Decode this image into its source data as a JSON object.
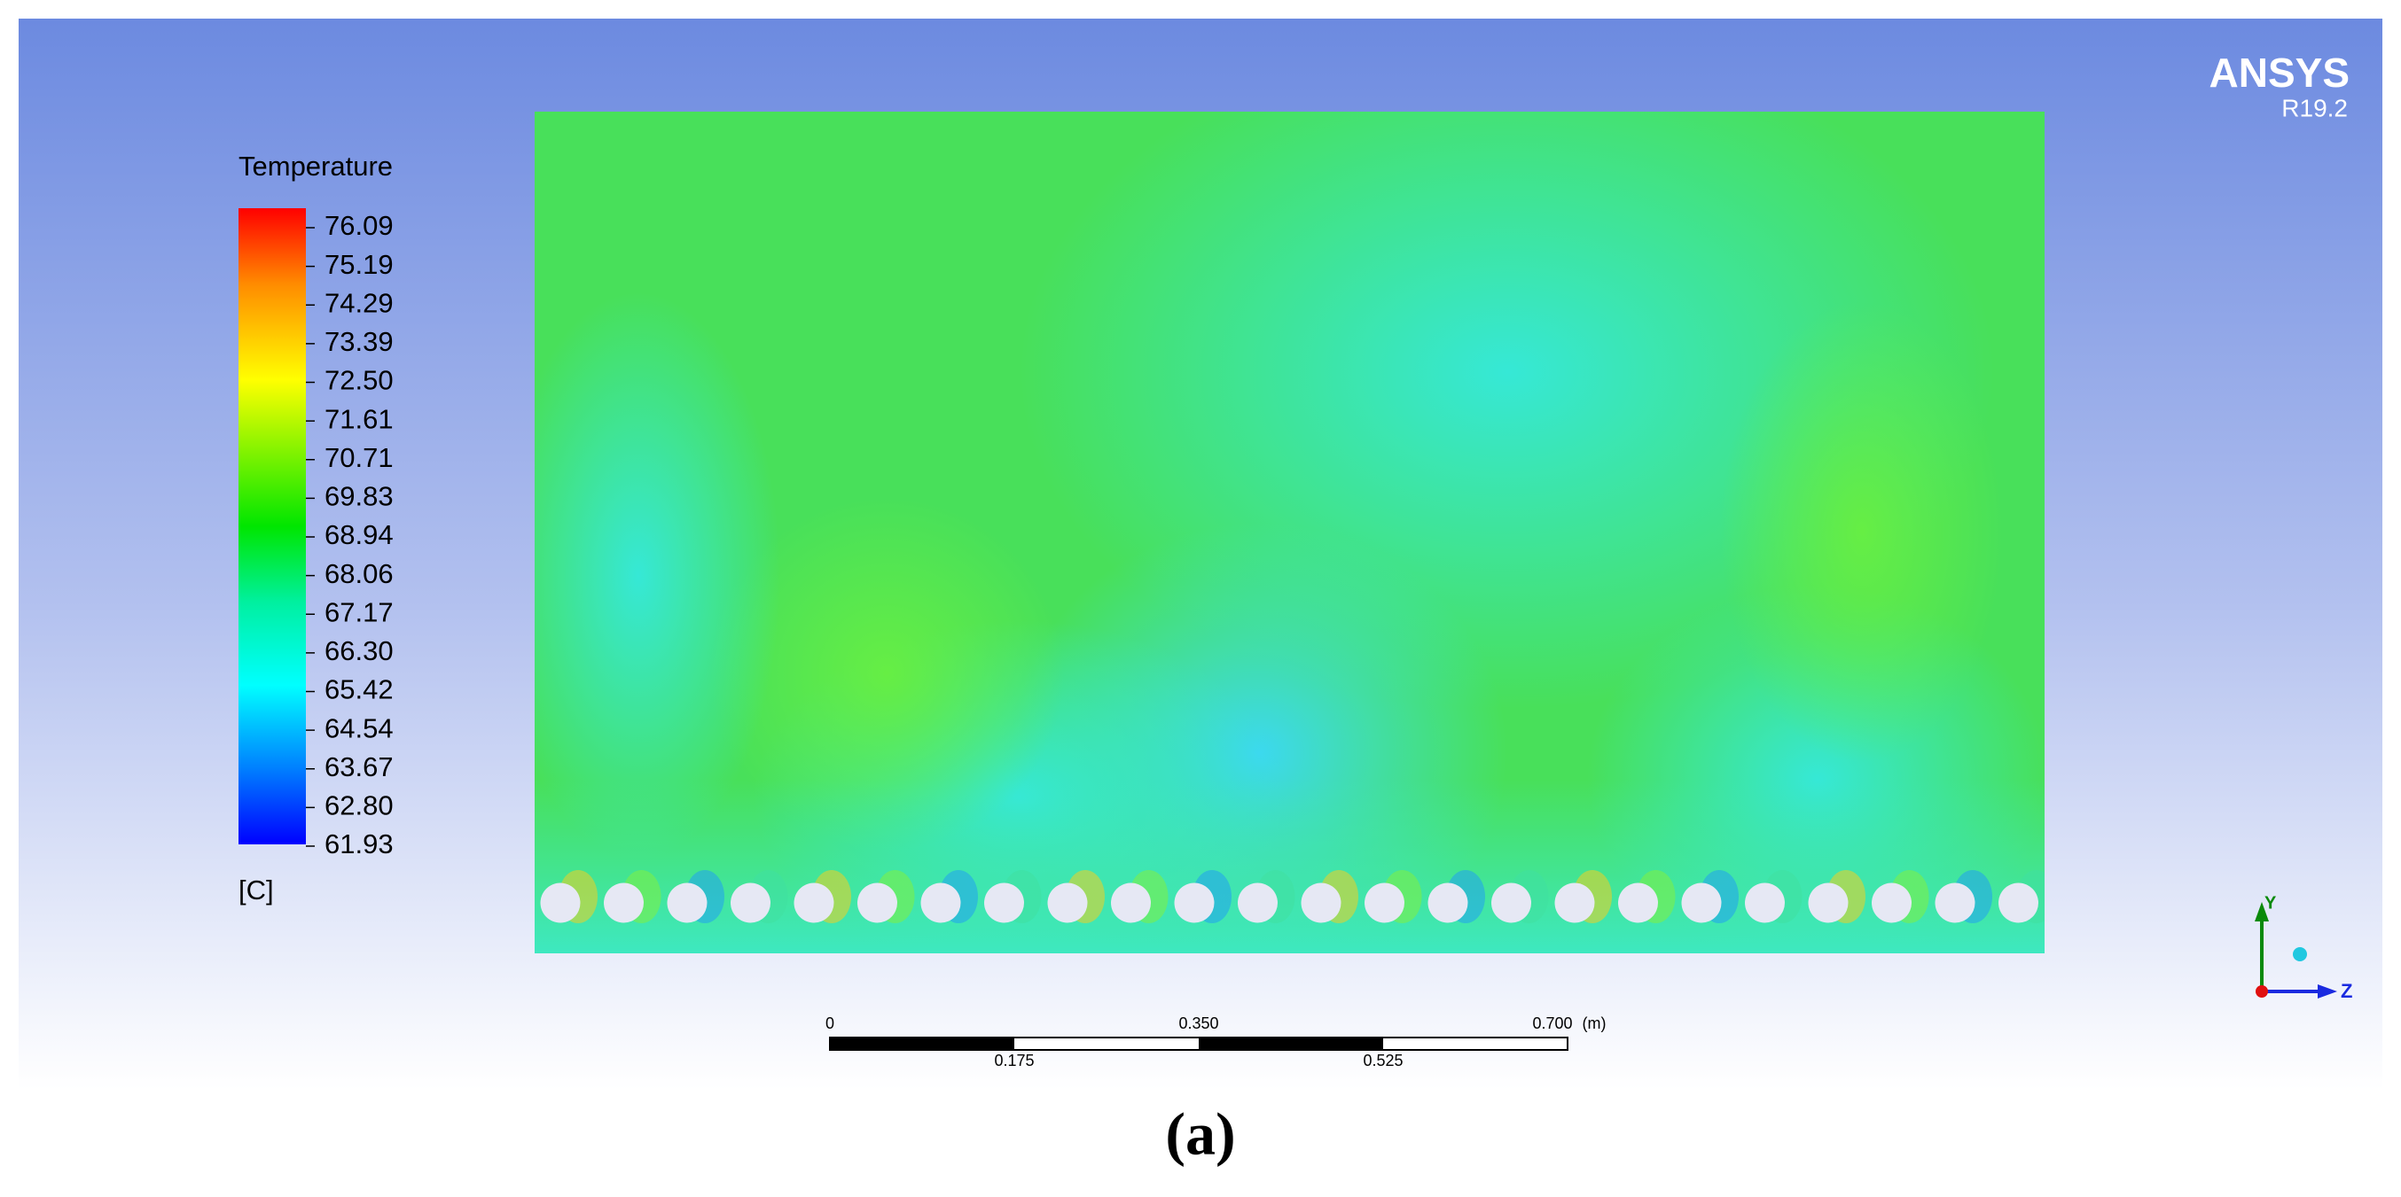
{
  "logo": {
    "name": "ANSYS",
    "version": "R19.2"
  },
  "legend": {
    "title": "Temperature",
    "labels": [
      "76.09",
      "75.19",
      "74.29",
      "73.39",
      "72.50",
      "71.61",
      "70.71",
      "69.83",
      "68.94",
      "68.06",
      "67.17",
      "66.30",
      "65.42",
      "64.54",
      "63.67",
      "62.80",
      "61.93"
    ],
    "unit": "[C]"
  },
  "scale_bar": {
    "top_labels": [
      "0",
      "0.350",
      "0.700"
    ],
    "unit": "(m)",
    "bottom_labels": [
      "0.175",
      "0.525"
    ]
  },
  "axes": {
    "y": "Y",
    "z": "Z"
  },
  "caption": "(a)"
}
